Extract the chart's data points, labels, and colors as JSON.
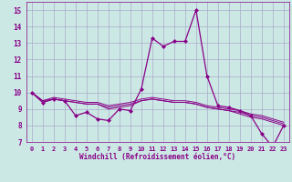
{
  "xlabel": "Windchill (Refroidissement éolien,°C)",
  "background_color": "#cce8e4",
  "grid_color": "#aaaacc",
  "line_color": "#880088",
  "xlim": [
    -0.5,
    23.5
  ],
  "ylim": [
    7,
    15.5
  ],
  "xticks": [
    0,
    1,
    2,
    3,
    4,
    5,
    6,
    7,
    8,
    9,
    10,
    11,
    12,
    13,
    14,
    15,
    16,
    17,
    18,
    19,
    20,
    21,
    22,
    23
  ],
  "yticks": [
    7,
    8,
    9,
    10,
    11,
    12,
    13,
    14,
    15
  ],
  "series": [
    [
      10.0,
      9.4,
      9.6,
      9.5,
      8.6,
      8.8,
      8.4,
      8.3,
      9.0,
      8.9,
      10.2,
      13.3,
      12.8,
      13.1,
      13.1,
      15.0,
      11.0,
      9.2,
      9.1,
      8.9,
      8.6,
      7.5,
      6.7,
      8.0
    ],
    [
      10.0,
      9.4,
      9.6,
      9.5,
      9.4,
      9.3,
      9.3,
      9.0,
      9.1,
      9.2,
      9.5,
      9.6,
      9.5,
      9.4,
      9.4,
      9.3,
      9.1,
      9.0,
      8.9,
      8.7,
      8.5,
      8.4,
      8.2,
      8.0
    ],
    [
      10.0,
      9.5,
      9.6,
      9.5,
      9.4,
      9.3,
      9.3,
      9.1,
      9.2,
      9.3,
      9.5,
      9.6,
      9.5,
      9.4,
      9.4,
      9.3,
      9.1,
      9.0,
      8.9,
      8.8,
      8.6,
      8.5,
      8.3,
      8.1
    ],
    [
      10.0,
      9.5,
      9.7,
      9.6,
      9.5,
      9.4,
      9.4,
      9.2,
      9.3,
      9.4,
      9.6,
      9.7,
      9.6,
      9.5,
      9.5,
      9.4,
      9.2,
      9.1,
      9.0,
      8.9,
      8.7,
      8.6,
      8.4,
      8.2
    ]
  ]
}
